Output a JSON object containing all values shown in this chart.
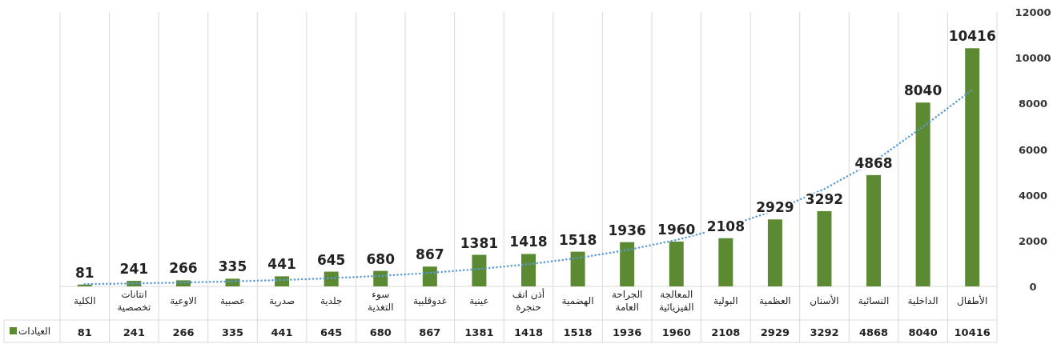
{
  "chart_data": {
    "type": "bar",
    "categories": [
      "الكلية",
      "انتانات\nتخصصية",
      "الاوعية",
      "عصبية",
      "صدرية",
      "جلدية",
      "سوء\nالتغذية",
      "غدوقلبية",
      "عينية",
      "أذن انف\nحنجرة",
      "الهضمية",
      "الجراحة\nالعامة",
      "المعالجة\nالفيزيائية",
      "البولية",
      "العظمية",
      "الأسنان",
      "النسائية",
      "الداخلية",
      "الأطفال"
    ],
    "series": [
      {
        "name": "العيادات",
        "color": "#5b8a32",
        "values": [
          81,
          241,
          266,
          335,
          441,
          645,
          680,
          867,
          1381,
          1418,
          1518,
          1936,
          1960,
          2108,
          2929,
          3292,
          4868,
          8040,
          10416
        ],
        "value_labels": [
          "81",
          "241",
          "266",
          "335",
          "441",
          "645",
          "680",
          "867",
          "1381",
          "1418",
          "1518",
          "1936",
          "1960",
          "2108",
          "2929",
          "3292",
          "4868",
          "8040",
          "10416"
        ]
      },
      {
        "type": "line",
        "color": "#5b9bd5",
        "line_style": "dotted",
        "values": [
          100,
          130,
          170,
          220,
          280,
          360,
          460,
          590,
          760,
          970,
          1240,
          1590,
          2030,
          2600,
          3330,
          4260,
          5450,
          6980,
          8600
        ]
      }
    ],
    "ylim": [
      0,
      12000
    ],
    "yticks": [
      0,
      2000,
      4000,
      6000,
      8000,
      10000,
      12000
    ],
    "grid": "x",
    "legend": "bottom left"
  }
}
